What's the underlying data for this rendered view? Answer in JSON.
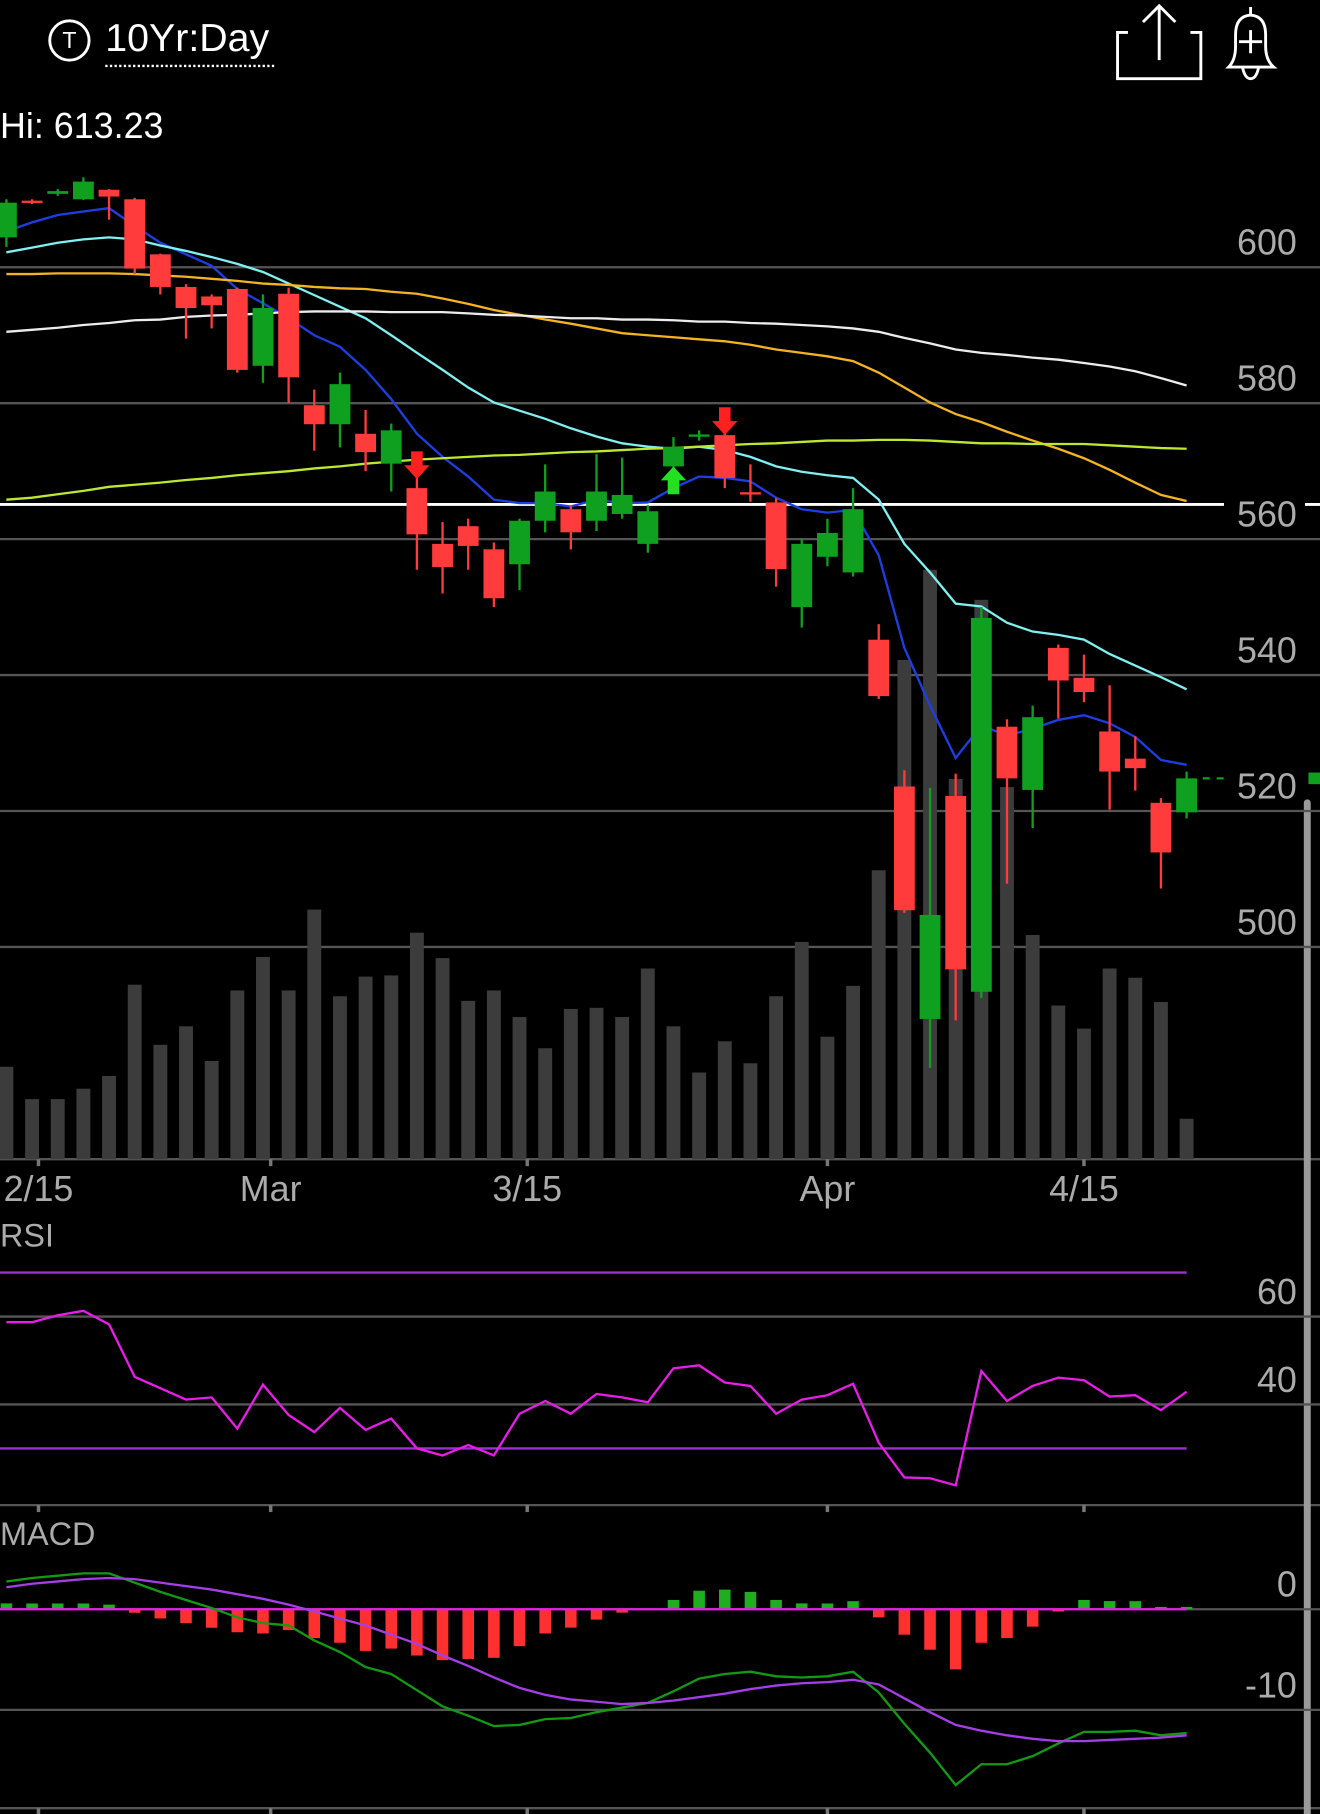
{
  "header": {
    "badge": "T",
    "title": "10Yr:Day"
  },
  "chart_data": [
    {
      "type": "candlestick",
      "hi_label": "Hi: 613.23",
      "open": [
        604.4,
        609.8,
        610.8,
        610.0,
        611.4,
        610.0,
        601.9,
        597.1,
        595.7,
        596.8,
        585.5,
        596.1,
        579.7,
        576.9,
        575.5,
        571.1,
        567.5,
        559.3,
        561.9,
        558.5,
        556.3,
        562.7,
        564.4,
        562.7,
        563.7,
        559.3,
        570.7,
        575.2,
        575.3,
        566.9,
        565.4,
        550.0,
        557.4,
        555.1,
        545.2,
        523.6,
        489.4,
        522.2,
        493.4,
        532.4,
        523.1,
        544.0,
        539.6,
        531.7,
        527.7,
        521.2,
        519.8
      ],
      "high": [
        610.0,
        610.0,
        611.5,
        613.23,
        611.5,
        610.2,
        602.0,
        597.5,
        596.0,
        597.0,
        596.0,
        597.0,
        582.0,
        584.5,
        579.0,
        577.0,
        569.5,
        562.5,
        563.0,
        559.5,
        563.0,
        571.0,
        565.0,
        572.5,
        572.0,
        565.0,
        575.0,
        576.0,
        576.0,
        571.0,
        566.0,
        560.0,
        563.0,
        567.5,
        547.5,
        526.0,
        523.4,
        525.5,
        550.0,
        533.5,
        535.5,
        544.5,
        543.0,
        538.5,
        531.0,
        521.9,
        525.8
      ],
      "low": [
        603.0,
        609.3,
        610.5,
        609.9,
        607.0,
        599.0,
        596.0,
        589.5,
        591.0,
        584.5,
        583.0,
        580.0,
        573.0,
        573.5,
        570.0,
        567.0,
        555.5,
        552.0,
        555.5,
        550.0,
        552.5,
        561.0,
        558.5,
        561.2,
        563.0,
        558.0,
        570.0,
        574.5,
        567.5,
        565.5,
        553.0,
        547.0,
        556.0,
        554.5,
        536.5,
        505.0,
        482.2,
        489.2,
        492.5,
        509.3,
        517.5,
        533.6,
        536.0,
        520.2,
        523.0,
        508.6,
        518.9
      ],
      "close": [
        609.5,
        609.6,
        611.2,
        612.6,
        610.4,
        599.8,
        597.1,
        594.0,
        594.4,
        584.9,
        594.0,
        583.8,
        576.9,
        582.8,
        572.8,
        576.0,
        560.7,
        555.9,
        559.0,
        551.3,
        562.7,
        567.0,
        561.0,
        567.0,
        566.5,
        564.1,
        573.6,
        575.4,
        569.0,
        566.7,
        555.6,
        559.3,
        560.9,
        564.4,
        536.9,
        505.4,
        504.7,
        496.7,
        548.4,
        524.8,
        533.8,
        539.2,
        537.5,
        525.8,
        526.3,
        513.9,
        524.8
      ],
      "up_color": "#0fa01f",
      "down_color": "#ff3b3b",
      "volume": [
        80,
        52,
        52,
        61,
        72,
        151,
        99,
        115,
        85,
        146,
        175,
        146,
        216,
        141,
        158,
        159,
        196,
        174,
        137,
        146,
        123,
        96,
        130,
        131,
        123,
        165,
        115,
        75,
        102,
        83,
        141,
        188,
        106,
        150,
        250,
        432,
        510,
        329,
        484,
        322,
        194,
        133,
        113,
        165,
        157,
        136,
        35
      ],
      "volume_lim": [
        0,
        860
      ],
      "volume_color": "#3c3c3c",
      "overlays": [
        {
          "color": "#1e3fe0",
          "values": [
            605.3,
            606.6,
            607.7,
            608.2,
            608.7,
            606.1,
            603.6,
            601.9,
            600.2,
            596.8,
            594.7,
            592.5,
            590.0,
            588.3,
            584.9,
            580.6,
            575.5,
            572.1,
            569.2,
            565.8,
            565.3,
            565.3,
            564.8,
            565.8,
            565.3,
            565.4,
            567.5,
            569.2,
            569.0,
            568.5,
            566.1,
            564.4,
            563.9,
            564.3,
            557.6,
            544.0,
            535.5,
            527.8,
            532.6,
            531.1,
            532.1,
            533.4,
            534.1,
            532.9,
            530.9,
            527.5,
            526.8
          ]
        },
        {
          "color": "#80f0f0",
          "values": [
            602.2,
            602.9,
            603.6,
            604.1,
            604.4,
            604.1,
            603.2,
            602.4,
            601.5,
            600.5,
            599.3,
            597.6,
            595.9,
            594.2,
            592.5,
            590.0,
            587.4,
            584.9,
            582.3,
            580.1,
            578.9,
            577.7,
            576.3,
            575.1,
            574.1,
            573.6,
            573.3,
            573.6,
            573.1,
            572.1,
            570.7,
            569.9,
            569.4,
            569.0,
            565.8,
            559.3,
            555.1,
            550.5,
            550.1,
            547.7,
            546.4,
            545.9,
            545.2,
            543.1,
            541.4,
            539.7,
            537.9
          ]
        },
        {
          "color": "#f2b424",
          "values": [
            599.0,
            599.0,
            599.1,
            599.1,
            599.1,
            599.0,
            598.8,
            598.6,
            598.3,
            598.0,
            597.6,
            597.4,
            597.1,
            596.9,
            596.8,
            596.4,
            596.1,
            595.4,
            594.6,
            593.7,
            593.0,
            592.3,
            591.7,
            591.0,
            590.3,
            590.0,
            589.7,
            589.4,
            589.1,
            588.6,
            587.9,
            587.4,
            586.9,
            586.2,
            584.5,
            582.3,
            580.1,
            578.4,
            577.2,
            575.8,
            574.5,
            573.3,
            571.9,
            570.2,
            568.3,
            566.5,
            565.6
          ]
        },
        {
          "color": "#ececec",
          "values": [
            590.5,
            590.8,
            591.1,
            591.5,
            591.8,
            592.2,
            592.3,
            592.7,
            592.9,
            593.0,
            593.2,
            593.4,
            593.5,
            593.5,
            593.5,
            593.4,
            593.4,
            593.4,
            593.2,
            593.0,
            592.9,
            592.7,
            592.5,
            592.5,
            592.3,
            592.3,
            592.2,
            592.0,
            592.0,
            591.8,
            591.7,
            591.5,
            591.3,
            591.0,
            590.5,
            589.6,
            588.8,
            587.9,
            587.4,
            587.1,
            586.7,
            586.4,
            585.9,
            585.4,
            584.7,
            583.7,
            582.6
          ]
        },
        {
          "color": "#bde832",
          "values": [
            565.8,
            566.1,
            566.6,
            567.1,
            567.7,
            568.0,
            568.3,
            568.7,
            569.0,
            569.4,
            569.7,
            570.0,
            570.4,
            570.7,
            571.1,
            571.4,
            571.7,
            571.9,
            572.1,
            572.3,
            572.4,
            572.6,
            572.8,
            572.9,
            573.1,
            573.3,
            573.4,
            573.6,
            573.8,
            574.0,
            574.1,
            574.3,
            574.5,
            574.5,
            574.6,
            574.6,
            574.5,
            574.3,
            574.1,
            574.1,
            574.0,
            574.0,
            574.0,
            573.8,
            573.6,
            573.4,
            573.3
          ]
        }
      ],
      "reference_line": 565.1,
      "signals": [
        null,
        null,
        null,
        null,
        null,
        null,
        null,
        null,
        null,
        null,
        null,
        null,
        null,
        null,
        null,
        null,
        "down",
        null,
        null,
        null,
        null,
        null,
        null,
        null,
        null,
        null,
        "up",
        null,
        "down",
        null,
        null,
        null,
        null,
        null,
        null,
        null,
        null,
        null,
        null,
        null,
        null,
        null,
        null,
        null,
        null,
        null,
        null
      ],
      "signal_up_color": "#22e022",
      "signal_down_color": "#ff2020",
      "xlim": [
        -0.25,
        51.2
      ],
      "xticks": [
        {
          "value": 1.25,
          "label": "2/15"
        },
        {
          "value": 10.3,
          "label": "Mar"
        },
        {
          "value": 20.3,
          "label": "3/15"
        },
        {
          "value": 32,
          "label": "Apr"
        },
        {
          "value": 42,
          "label": "4/15"
        }
      ],
      "ylim": [
        470,
        615
      ],
      "yticks": [
        500,
        520,
        540,
        560,
        580,
        600
      ],
      "grid": true
    },
    {
      "type": "line",
      "title": "RSI",
      "color": "#e61ee6",
      "values": [
        58.7,
        58.7,
        60.3,
        61.3,
        58.2,
        46.3,
        43.7,
        41.1,
        41.6,
        34.5,
        44.5,
        37.6,
        33.7,
        39.2,
        34.2,
        36.8,
        30.0,
        28.4,
        30.8,
        28.4,
        37.9,
        40.8,
        37.9,
        42.4,
        41.6,
        40.5,
        48.2,
        48.9,
        45.0,
        44.2,
        37.9,
        41.1,
        42.1,
        44.7,
        31.3,
        23.4,
        23.2,
        21.6,
        47.6,
        40.8,
        44.2,
        46.1,
        45.5,
        41.8,
        42.1,
        38.7,
        42.9
      ],
      "levels": [
        70,
        30
      ],
      "level_color": "#9a30d2",
      "ylim": [
        17,
        82
      ],
      "yticks": [
        40,
        60
      ],
      "grid": true
    },
    {
      "type": "macd",
      "title": "MACD",
      "series": [
        {
          "color": "#139a13",
          "values": [
            2.76,
            3.1,
            3.33,
            3.56,
            3.56,
            2.64,
            1.72,
            0.92,
            0.11,
            -0.8,
            -1.38,
            -1.61,
            -3.1,
            -4.25,
            -5.75,
            -6.44,
            -8.05,
            -9.66,
            -10.57,
            -11.61,
            -11.49,
            -10.92,
            -10.8,
            -10.23,
            -9.77,
            -9.31,
            -8.16,
            -6.9,
            -6.44,
            -6.21,
            -6.67,
            -6.78,
            -6.67,
            -6.21,
            -8.28,
            -11.38,
            -14.25,
            -17.47,
            -15.4,
            -15.4,
            -14.6,
            -13.33,
            -12.18,
            -12.18,
            -12.07,
            -12.53,
            -12.3
          ]
        },
        {
          "color": "#a43ee6",
          "values": [
            2.18,
            2.53,
            2.76,
            2.99,
            3.1,
            2.99,
            2.64,
            2.3,
            1.95,
            1.49,
            1.03,
            0.46,
            -0.23,
            -0.92,
            -1.61,
            -2.53,
            -3.45,
            -4.6,
            -5.63,
            -6.78,
            -7.82,
            -8.51,
            -8.97,
            -9.2,
            -9.43,
            -9.31,
            -9.08,
            -8.74,
            -8.39,
            -7.93,
            -7.59,
            -7.36,
            -7.24,
            -7.01,
            -7.47,
            -8.85,
            -10.23,
            -11.49,
            -12.07,
            -12.53,
            -12.87,
            -13.1,
            -13.1,
            -12.99,
            -12.87,
            -12.76,
            -12.53
          ]
        }
      ],
      "histogram": [
        0.58,
        0.57,
        0.57,
        0.57,
        0.46,
        -0.35,
        -0.92,
        -1.38,
        -1.84,
        -2.29,
        -2.41,
        -2.07,
        -2.87,
        -3.33,
        -4.14,
        -3.91,
        -4.6,
        -5.06,
        -4.94,
        -4.83,
        -3.67,
        -2.41,
        -1.83,
        -1.03,
        -0.34,
        0.0,
        0.92,
        1.84,
        1.95,
        1.72,
        0.92,
        0.58,
        0.57,
        0.8,
        -0.81,
        -2.53,
        -4.02,
        -5.98,
        -3.33,
        -2.87,
        -1.73,
        -0.23,
        0.92,
        0.81,
        0.8,
        0.23,
        0.23
      ],
      "up_color": "#1fae1f",
      "down_color": "#ff3030",
      "zero_color": "#e61ee6",
      "ylim": [
        -20,
        8
      ],
      "yticks": [
        -10,
        0
      ],
      "grid": true
    }
  ]
}
